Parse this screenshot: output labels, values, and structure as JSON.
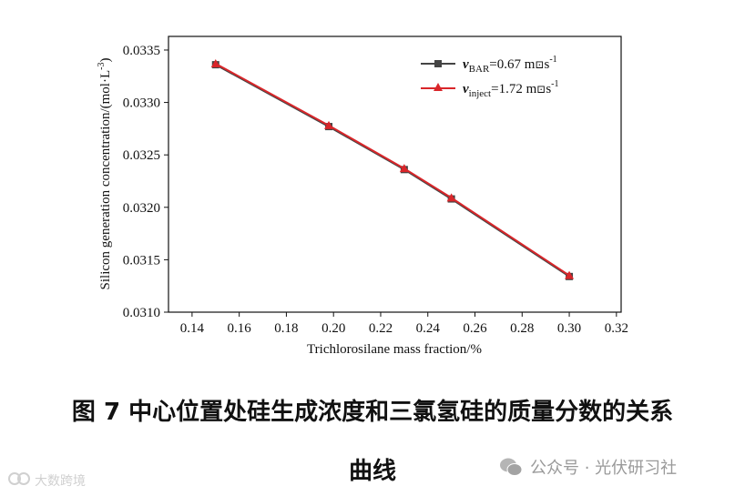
{
  "chart_data": {
    "type": "line",
    "xlabel": "Trichlorosilane mass fraction/%",
    "ylabel": {
      "main": "Silicon generation concentration/(mol·L",
      "sup": "-3",
      "end": ")"
    },
    "xlim": [
      0.13,
      0.322
    ],
    "ylim": [
      0.031,
      0.03363
    ],
    "xticks": [
      "0.14",
      "0.16",
      "0.18",
      "0.20",
      "0.22",
      "0.24",
      "0.26",
      "0.28",
      "0.30",
      "0.32"
    ],
    "yticks": [
      "0.0310",
      "0.0315",
      "0.0320",
      "0.0325",
      "0.0330",
      "0.0335"
    ],
    "x": [
      0.15,
      0.198,
      0.23,
      0.25,
      0.3
    ],
    "series": [
      {
        "name": {
          "symbol": "v",
          "sub": "BAR",
          "value": "=0.67 m",
          "glyph": "⊡",
          "s": "s",
          "sup": "-1"
        },
        "values": [
          0.03336,
          0.03277,
          0.03236,
          0.03208,
          0.03134
        ],
        "color": "#444444",
        "marker": "square"
      },
      {
        "name": {
          "symbol": "v",
          "sub": "inject",
          "value": "=1.72 m",
          "glyph": "⊡",
          "s": "s",
          "sup": "-1"
        },
        "values": [
          0.03337,
          0.03278,
          0.03237,
          0.03209,
          0.03135
        ],
        "color": "#d9262a",
        "marker": "triangle"
      }
    ],
    "legend": "top-right",
    "grid": false
  },
  "caption": {
    "line1": "图 7 中心位置处硅生成浓度和三氯氢硅的质量分数的关系",
    "line2": "曲线"
  },
  "watermark": {
    "right": "公众号 · 光伏研习社",
    "left": "大数跨境"
  }
}
